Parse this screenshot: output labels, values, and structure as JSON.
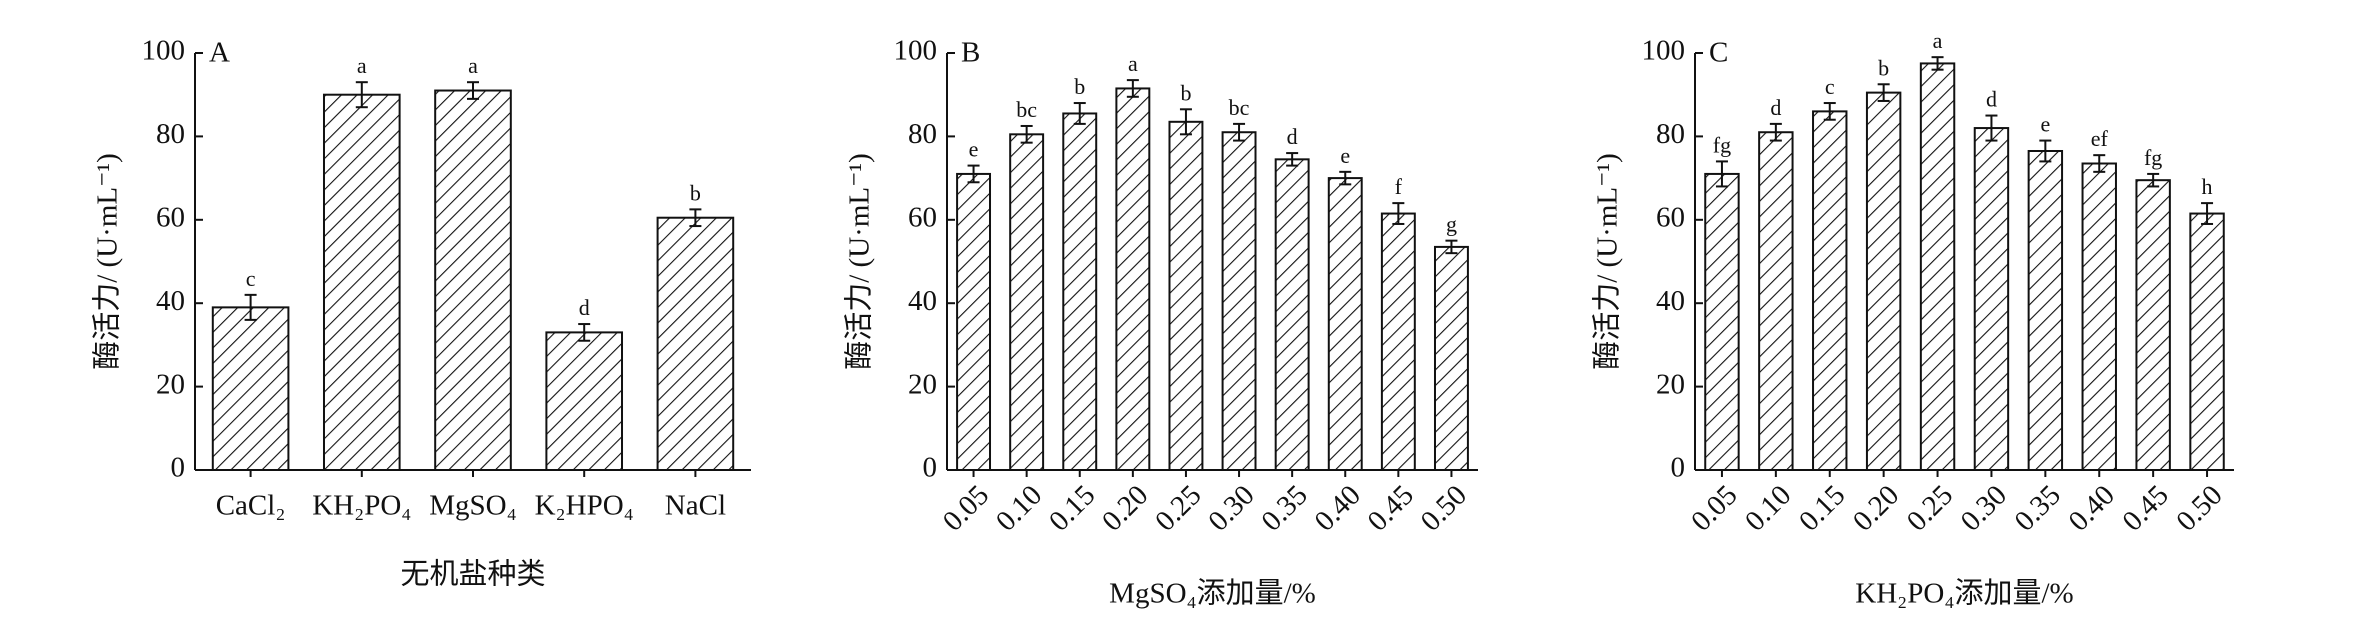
{
  "chart_data": [
    {
      "type": "bar",
      "panel": "A",
      "ylabel": "酶活力/ (U·mL⁻¹)",
      "xlabel": "无机盐种类",
      "categories": [
        "CaCl₂",
        "KH₂PO₄",
        "MgSO₄",
        "K₂HPO₄",
        "NaCl"
      ],
      "values": [
        39,
        90,
        91,
        33,
        60.5
      ],
      "errors": [
        3,
        3,
        2,
        2,
        2
      ],
      "letters": [
        "c",
        "a",
        "a",
        "d",
        "b"
      ],
      "ylim": [
        0,
        100
      ],
      "yticks": [
        0,
        20,
        40,
        60,
        80,
        100
      ],
      "color": "#111111"
    },
    {
      "type": "bar",
      "panel": "B",
      "ylabel": "酶活力/ (U·mL⁻¹)",
      "xlabel": "MgSO₄添加量/%",
      "categories": [
        "0.05",
        "0.10",
        "0.15",
        "0.20",
        "0.25",
        "0.30",
        "0.35",
        "0.40",
        "0.45",
        "0.50"
      ],
      "values": [
        71,
        80.5,
        85.5,
        91.5,
        83.5,
        81,
        74.5,
        70,
        61.5,
        53.5
      ],
      "errors": [
        2,
        2,
        2.5,
        2,
        3,
        2,
        1.5,
        1.5,
        2.5,
        1.5
      ],
      "letters": [
        "e",
        "bc",
        "b",
        "a",
        "b",
        "bc",
        "d",
        "e",
        "f",
        "g"
      ],
      "ylim": [
        0,
        100
      ],
      "yticks": [
        0,
        20,
        40,
        60,
        80,
        100
      ],
      "color": "#111111"
    },
    {
      "type": "bar",
      "panel": "C",
      "ylabel": "酶活力/ (U·mL⁻¹)",
      "xlabel": "KH₂PO₄添加量/%",
      "categories": [
        "0.05",
        "0.10",
        "0.15",
        "0.20",
        "0.25",
        "0.30",
        "0.35",
        "0.40",
        "0.45",
        "0.50"
      ],
      "values": [
        71,
        81,
        86,
        90.5,
        97.5,
        82,
        76.5,
        73.5,
        69.5,
        61.5
      ],
      "errors": [
        3,
        2,
        2,
        2,
        1.5,
        3,
        2.5,
        2,
        1.5,
        2.5
      ],
      "letters": [
        "fg",
        "d",
        "c",
        "b",
        "a",
        "d",
        "e",
        "ef",
        "fg",
        "h"
      ],
      "ylim": [
        0,
        100
      ],
      "yticks": [
        0,
        20,
        40,
        60,
        80,
        100
      ],
      "color": "#111111"
    }
  ]
}
